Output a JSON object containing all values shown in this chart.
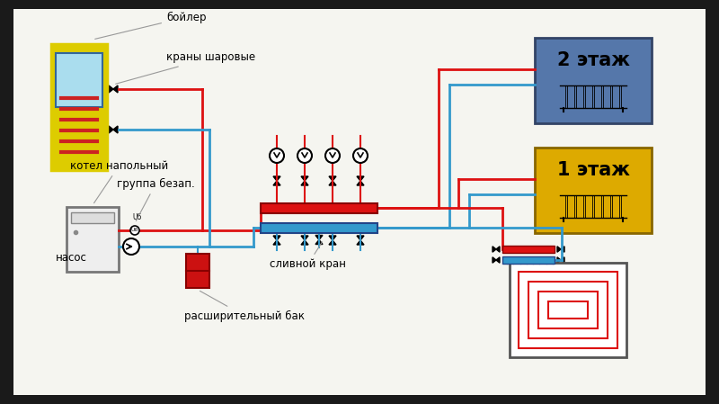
{
  "bg_color": "#1a1a1a",
  "inner_bg": "#f5f5f0",
  "labels": {
    "boiler": "бойлер",
    "ball_valves": "краны шаровые",
    "floor_boiler": "котел напольный",
    "safety_group": "группа безап.",
    "pump": "насос",
    "drain_valve": "сливной кран",
    "expansion_tank": "расширительный бак",
    "floor2": "2 этаж",
    "floor1": "1 этаж"
  },
  "colors": {
    "hot": "#dd1111",
    "cold": "#3399cc",
    "boiler_outer": "#ddcc00",
    "boiler_inner_fill": "#aaddee",
    "boiler_coil": "#cc2222",
    "floor2_bg": "#5577aa",
    "floor1_bg": "#ddaa00",
    "expansion_tank": "#cc1111",
    "label_line": "#999999",
    "manifold_red": "#cc1111",
    "manifold_blue": "#3399cc",
    "floor_boiler_body": "#eeeeee",
    "underfloor_line": "#dd1111"
  }
}
